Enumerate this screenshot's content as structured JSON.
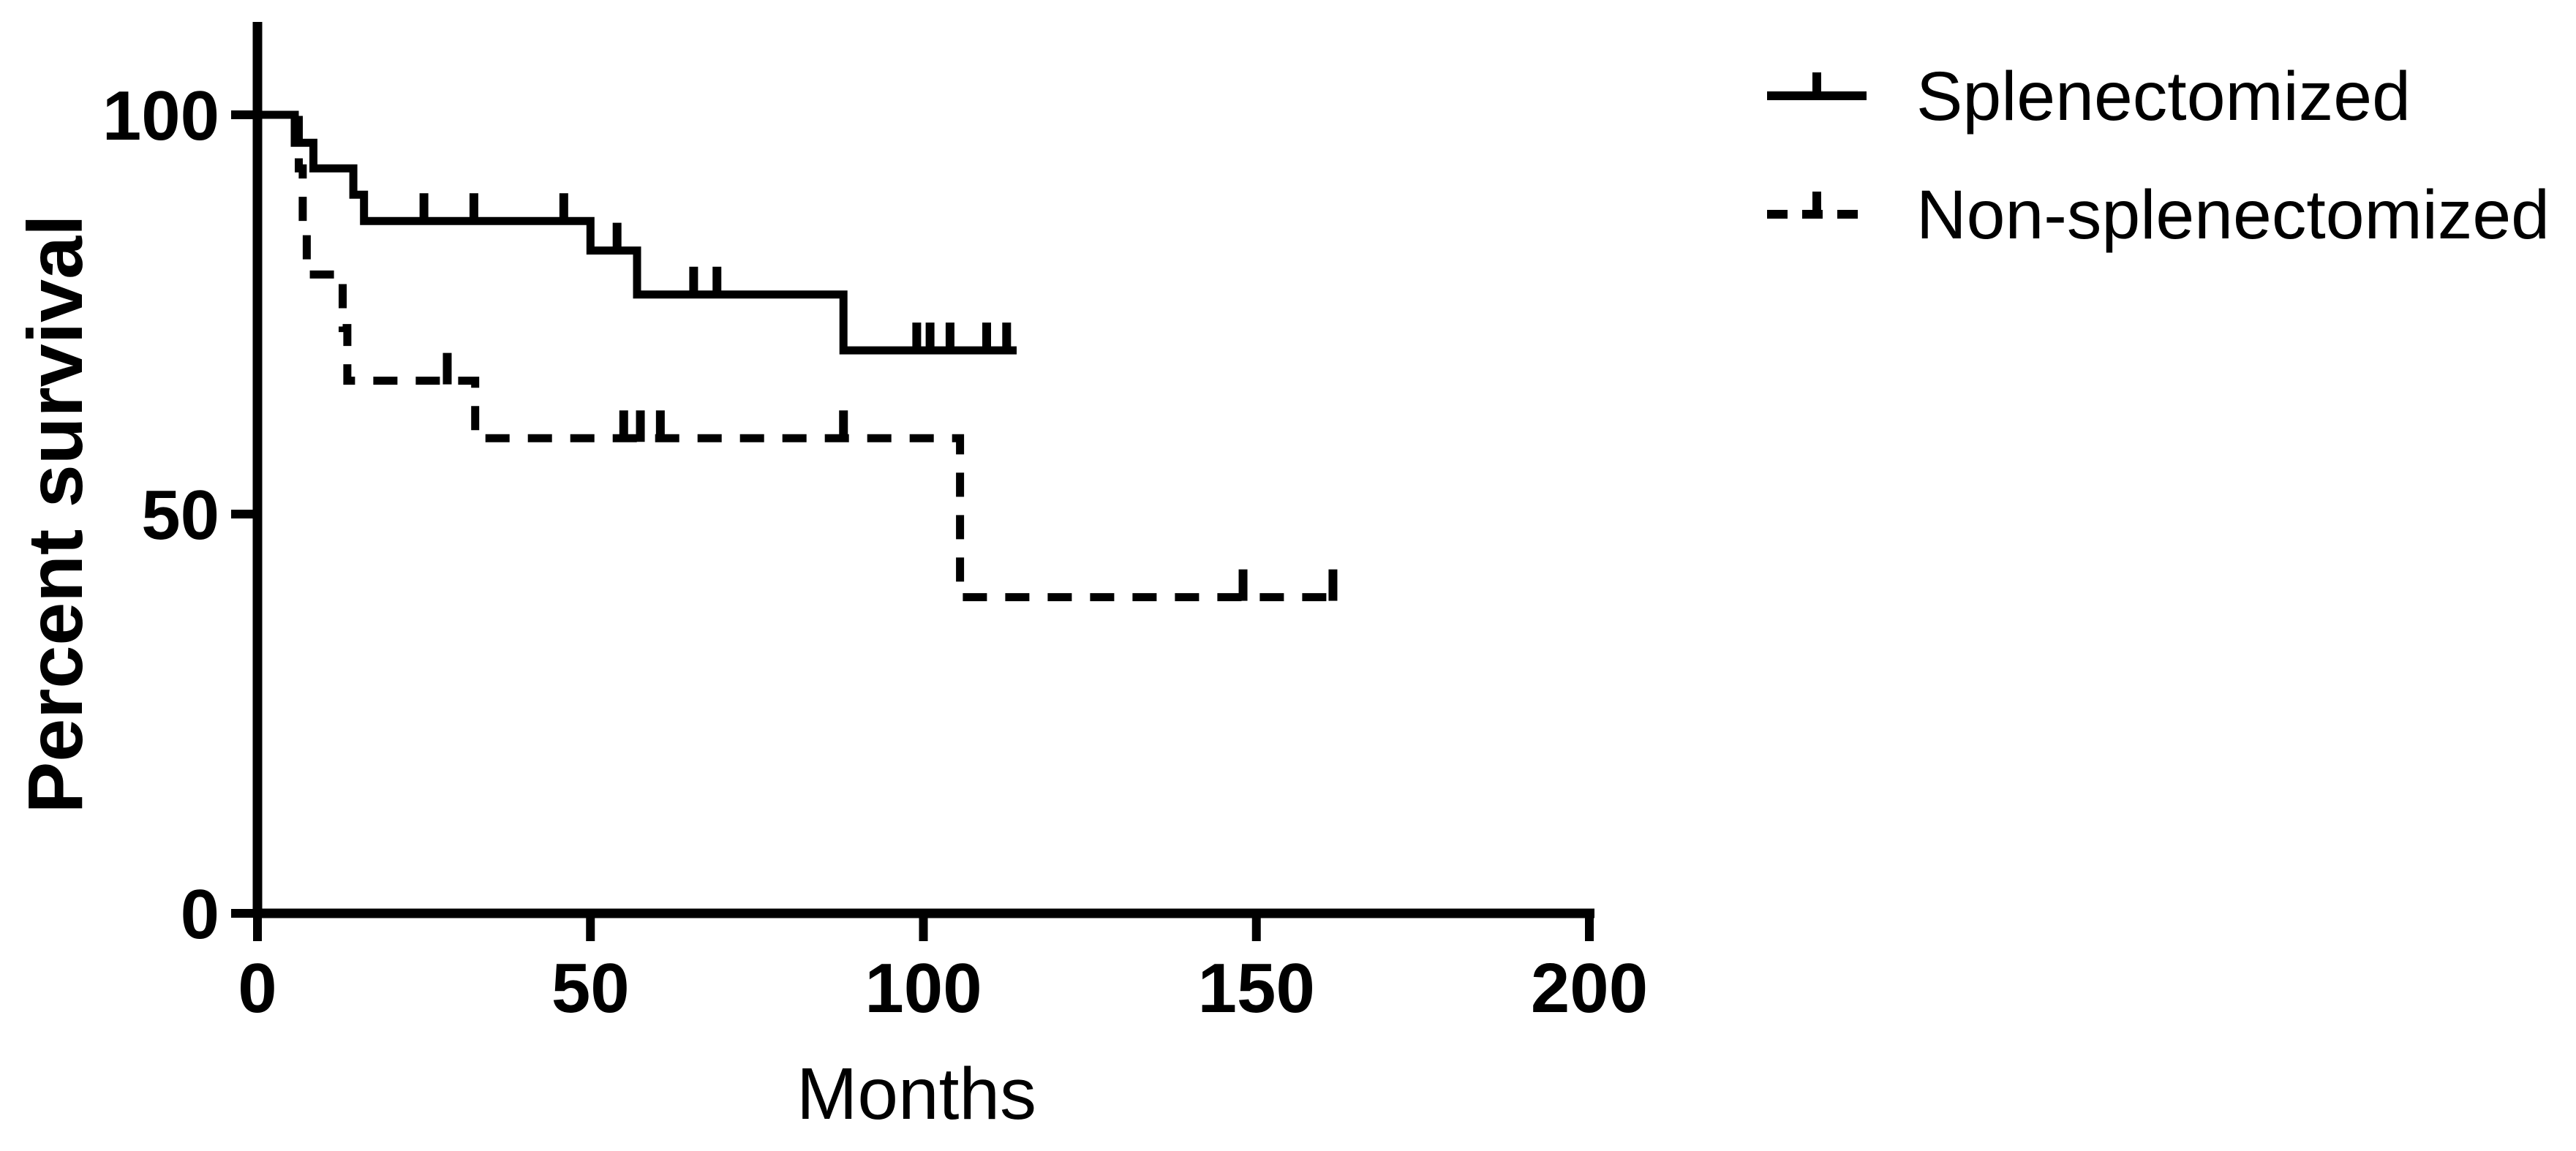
{
  "figure": {
    "kind": "Kaplan-Meier survival plot",
    "background_color": "#ffffff",
    "ink_color": "#000000"
  },
  "y_axis": {
    "title": "Percent survival",
    "tick_values": [
      0,
      50,
      100
    ],
    "tick_labels": [
      "0",
      "50",
      "100"
    ],
    "range": [
      0,
      100
    ]
  },
  "x_axis": {
    "title": "Months",
    "tick_values": [
      0,
      50,
      100,
      150,
      200
    ],
    "tick_labels": [
      "0",
      "50",
      "100",
      "150",
      "200"
    ],
    "range": [
      0,
      200
    ]
  },
  "legend": {
    "position": "top-right",
    "items": [
      {
        "label": "Splenectomized",
        "line_style": "solid"
      },
      {
        "label": "Non-splenectomized",
        "line_style": "dashed"
      }
    ]
  },
  "chart_data": {
    "type": "line",
    "subtype": "kaplan-meier-step",
    "title": "",
    "xlabel": "Months",
    "ylabel": "Percent survival",
    "xlim": [
      0,
      200
    ],
    "ylim": [
      0,
      100
    ],
    "grid": false,
    "legend_position": "top-right",
    "series": [
      {
        "name": "Splenectomized",
        "line_style": "solid",
        "color": "#000000",
        "steps": [
          [
            0,
            100
          ],
          [
            5.6,
            100
          ],
          [
            5.6,
            96.5
          ],
          [
            8.4,
            96.5
          ],
          [
            8.4,
            93.3
          ],
          [
            14.4,
            93.3
          ],
          [
            14.4,
            90
          ],
          [
            16,
            90
          ],
          [
            16,
            86.7
          ],
          [
            50,
            86.7
          ],
          [
            50,
            83
          ],
          [
            57,
            83
          ],
          [
            57,
            77.5
          ],
          [
            88,
            77.5
          ],
          [
            88,
            70.5
          ],
          [
            114,
            70.5
          ]
        ],
        "censor_marks": [
          [
            25,
            86.7
          ],
          [
            32.5,
            86.7
          ],
          [
            46,
            86.7
          ],
          [
            54,
            83
          ],
          [
            65.5,
            77.5
          ],
          [
            69,
            77.5
          ],
          [
            99,
            70.5
          ],
          [
            101,
            70.5
          ],
          [
            104,
            70.5
          ],
          [
            109.5,
            70.5
          ],
          [
            112.5,
            70.5
          ]
        ]
      },
      {
        "name": "Non-splenectomized",
        "line_style": "dashed",
        "color": "#000000",
        "steps": [
          [
            0,
            100
          ],
          [
            6.2,
            100
          ],
          [
            6.2,
            93.3
          ],
          [
            6.8,
            93.3
          ],
          [
            6.8,
            86.7
          ],
          [
            7.4,
            86.7
          ],
          [
            7.4,
            80
          ],
          [
            12.8,
            80
          ],
          [
            12.8,
            73.3
          ],
          [
            13.5,
            73.3
          ],
          [
            13.5,
            66.7
          ],
          [
            32.7,
            66.7
          ],
          [
            32.7,
            59.5
          ],
          [
            105.5,
            59.5
          ],
          [
            105.5,
            39.6
          ],
          [
            161,
            39.6
          ]
        ],
        "censor_marks": [
          [
            28.5,
            66.7
          ],
          [
            55,
            59.5
          ],
          [
            57.5,
            59.5
          ],
          [
            60.5,
            59.5
          ],
          [
            88,
            59.5
          ],
          [
            148,
            39.6
          ],
          [
            161.5,
            39.6
          ]
        ]
      }
    ]
  }
}
